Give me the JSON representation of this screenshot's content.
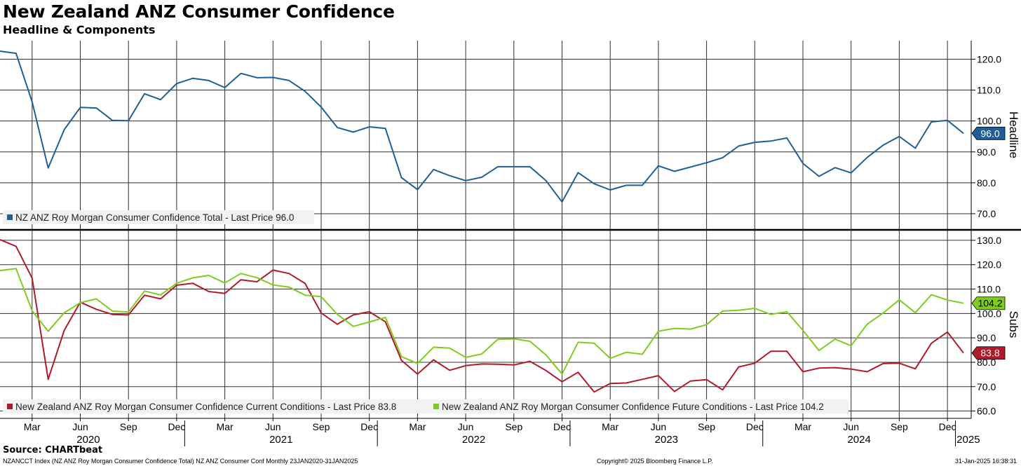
{
  "title": "New Zealand ANZ Consumer Confidence",
  "subtitle": "Headline & Components",
  "source": "Source: CHARTbeat",
  "footer": {
    "left": "NZANCCT Index (NZ ANZ Roy Morgan Consumer Confidence Total) NZ ANZ Consumer Conf  Monthly 23JAN2020-31JAN2025",
    "center": "Copyright© 2025 Bloomberg Finance L.P.",
    "right": "31-Jan-2025 16:38:31"
  },
  "colors": {
    "headline": "#1f5f99",
    "current": "#b01a2a",
    "future": "#7fcc1e"
  },
  "chart_data": [
    {
      "type": "line",
      "panel": "top",
      "ylabel": "Headline",
      "ylim": [
        65,
        126
      ],
      "yticks": [
        70,
        80,
        90,
        100,
        110,
        120
      ],
      "ytick_labels": [
        "70.0",
        "80.0",
        "90.0",
        "100.0",
        "110.0",
        "120.0"
      ],
      "x_start": "2020-01",
      "x_month_labels": [
        "Mar",
        "Jun",
        "Sep",
        "Dec",
        "Mar",
        "Jun",
        "Sep",
        "Dec",
        "Mar",
        "Jun",
        "Sep",
        "Dec",
        "Mar",
        "Jun",
        "Sep",
        "Dec",
        "Mar",
        "Jun",
        "Sep",
        "Dec"
      ],
      "x_year_labels": [
        "2020",
        "2021",
        "2022",
        "2023",
        "2024",
        "2025"
      ],
      "legend": "top-left-bottom",
      "series": [
        {
          "name": "NZ ANZ Roy Morgan Consumer Confidence Total",
          "legend_label": "NZ ANZ Roy Morgan Consumer Confidence Total - Last Price 96.0",
          "last_label": "96.0",
          "color_key": "headline",
          "values": [
            122.6,
            121.9,
            106.2,
            84.8,
            97.2,
            104.4,
            104.2,
            100.2,
            100.1,
            108.8,
            106.9,
            112.1,
            113.8,
            113.1,
            110.8,
            115.4,
            114.0,
            114.1,
            113.1,
            109.6,
            104.5,
            97.9,
            96.4,
            98.1,
            97.6,
            81.7,
            77.8,
            84.3,
            82.3,
            80.7,
            81.8,
            85.2,
            85.2,
            85.2,
            80.7,
            73.8,
            83.3,
            79.7,
            77.7,
            79.2,
            79.2,
            85.5,
            83.7,
            85.1,
            86.5,
            88.1,
            91.9,
            93.1,
            93.5,
            94.5,
            86.3,
            82.1,
            84.9,
            83.2,
            88.2,
            92.2,
            95.0,
            91.2,
            99.7,
            100.2,
            96.0
          ]
        }
      ]
    },
    {
      "type": "line",
      "panel": "bottom",
      "ylabel": "Subs",
      "ylim": [
        57,
        134
      ],
      "yticks": [
        60,
        70,
        80,
        90,
        100,
        110,
        120,
        130
      ],
      "ytick_labels": [
        "60.0",
        "70.0",
        "80.0",
        "90.0",
        "100.0",
        "110.0",
        "120.0",
        "130.0"
      ],
      "x_start": "2020-01",
      "legend": "bottom-left",
      "series": [
        {
          "name": "New Zealand ANZ Roy Morgan Consumer Confidence Current Conditions",
          "legend_label": "New Zealand ANZ Roy Morgan Consumer Confidence Current Conditions - Last Price 83.8",
          "last_label": "83.8",
          "color_key": "current",
          "values": [
            130.3,
            127.5,
            114.5,
            73.0,
            93.1,
            104.6,
            101.7,
            99.6,
            99.4,
            107.5,
            106.0,
            111.6,
            112.4,
            109.0,
            108.2,
            113.8,
            113.0,
            117.8,
            116.4,
            112.3,
            100.2,
            95.6,
            99.4,
            100.7,
            96.6,
            80.8,
            75.2,
            81.0,
            76.7,
            78.6,
            79.3,
            79.2,
            78.9,
            80.4,
            76.6,
            72.0,
            75.9,
            67.8,
            71.3,
            71.5,
            73.0,
            74.5,
            68.0,
            72.3,
            72.9,
            68.7,
            78.1,
            79.6,
            84.5,
            84.5,
            76.1,
            77.6,
            77.8,
            77.2,
            76.1,
            79.5,
            79.6,
            77.3,
            87.8,
            92.4,
            83.8
          ]
        },
        {
          "name": "New Zealand ANZ Roy Morgan Consumer Confidence Future Conditions",
          "legend_label": "New Zealand ANZ Roy Morgan Consumer Confidence Future Conditions - Last Price 104.2",
          "last_label": "104.2",
          "color_key": "future",
          "values": [
            117.6,
            118.4,
            101.1,
            92.7,
            100.3,
            104.4,
            106.0,
            101.0,
            100.6,
            109.2,
            107.6,
            112.4,
            114.6,
            115.6,
            112.5,
            116.4,
            114.7,
            111.7,
            110.8,
            107.5,
            106.9,
            99.7,
            94.7,
            96.5,
            98.4,
            82.3,
            79.5,
            86.2,
            85.8,
            82.0,
            83.4,
            89.4,
            89.6,
            88.6,
            83.0,
            75.2,
            88.2,
            87.8,
            81.6,
            84.1,
            83.3,
            92.7,
            93.9,
            93.6,
            95.4,
            101.0,
            101.3,
            102.1,
            99.6,
            100.7,
            93.1,
            84.8,
            89.5,
            86.8,
            95.6,
            100.2,
            105.6,
            100.3,
            107.7,
            105.5,
            104.2
          ]
        }
      ]
    }
  ]
}
